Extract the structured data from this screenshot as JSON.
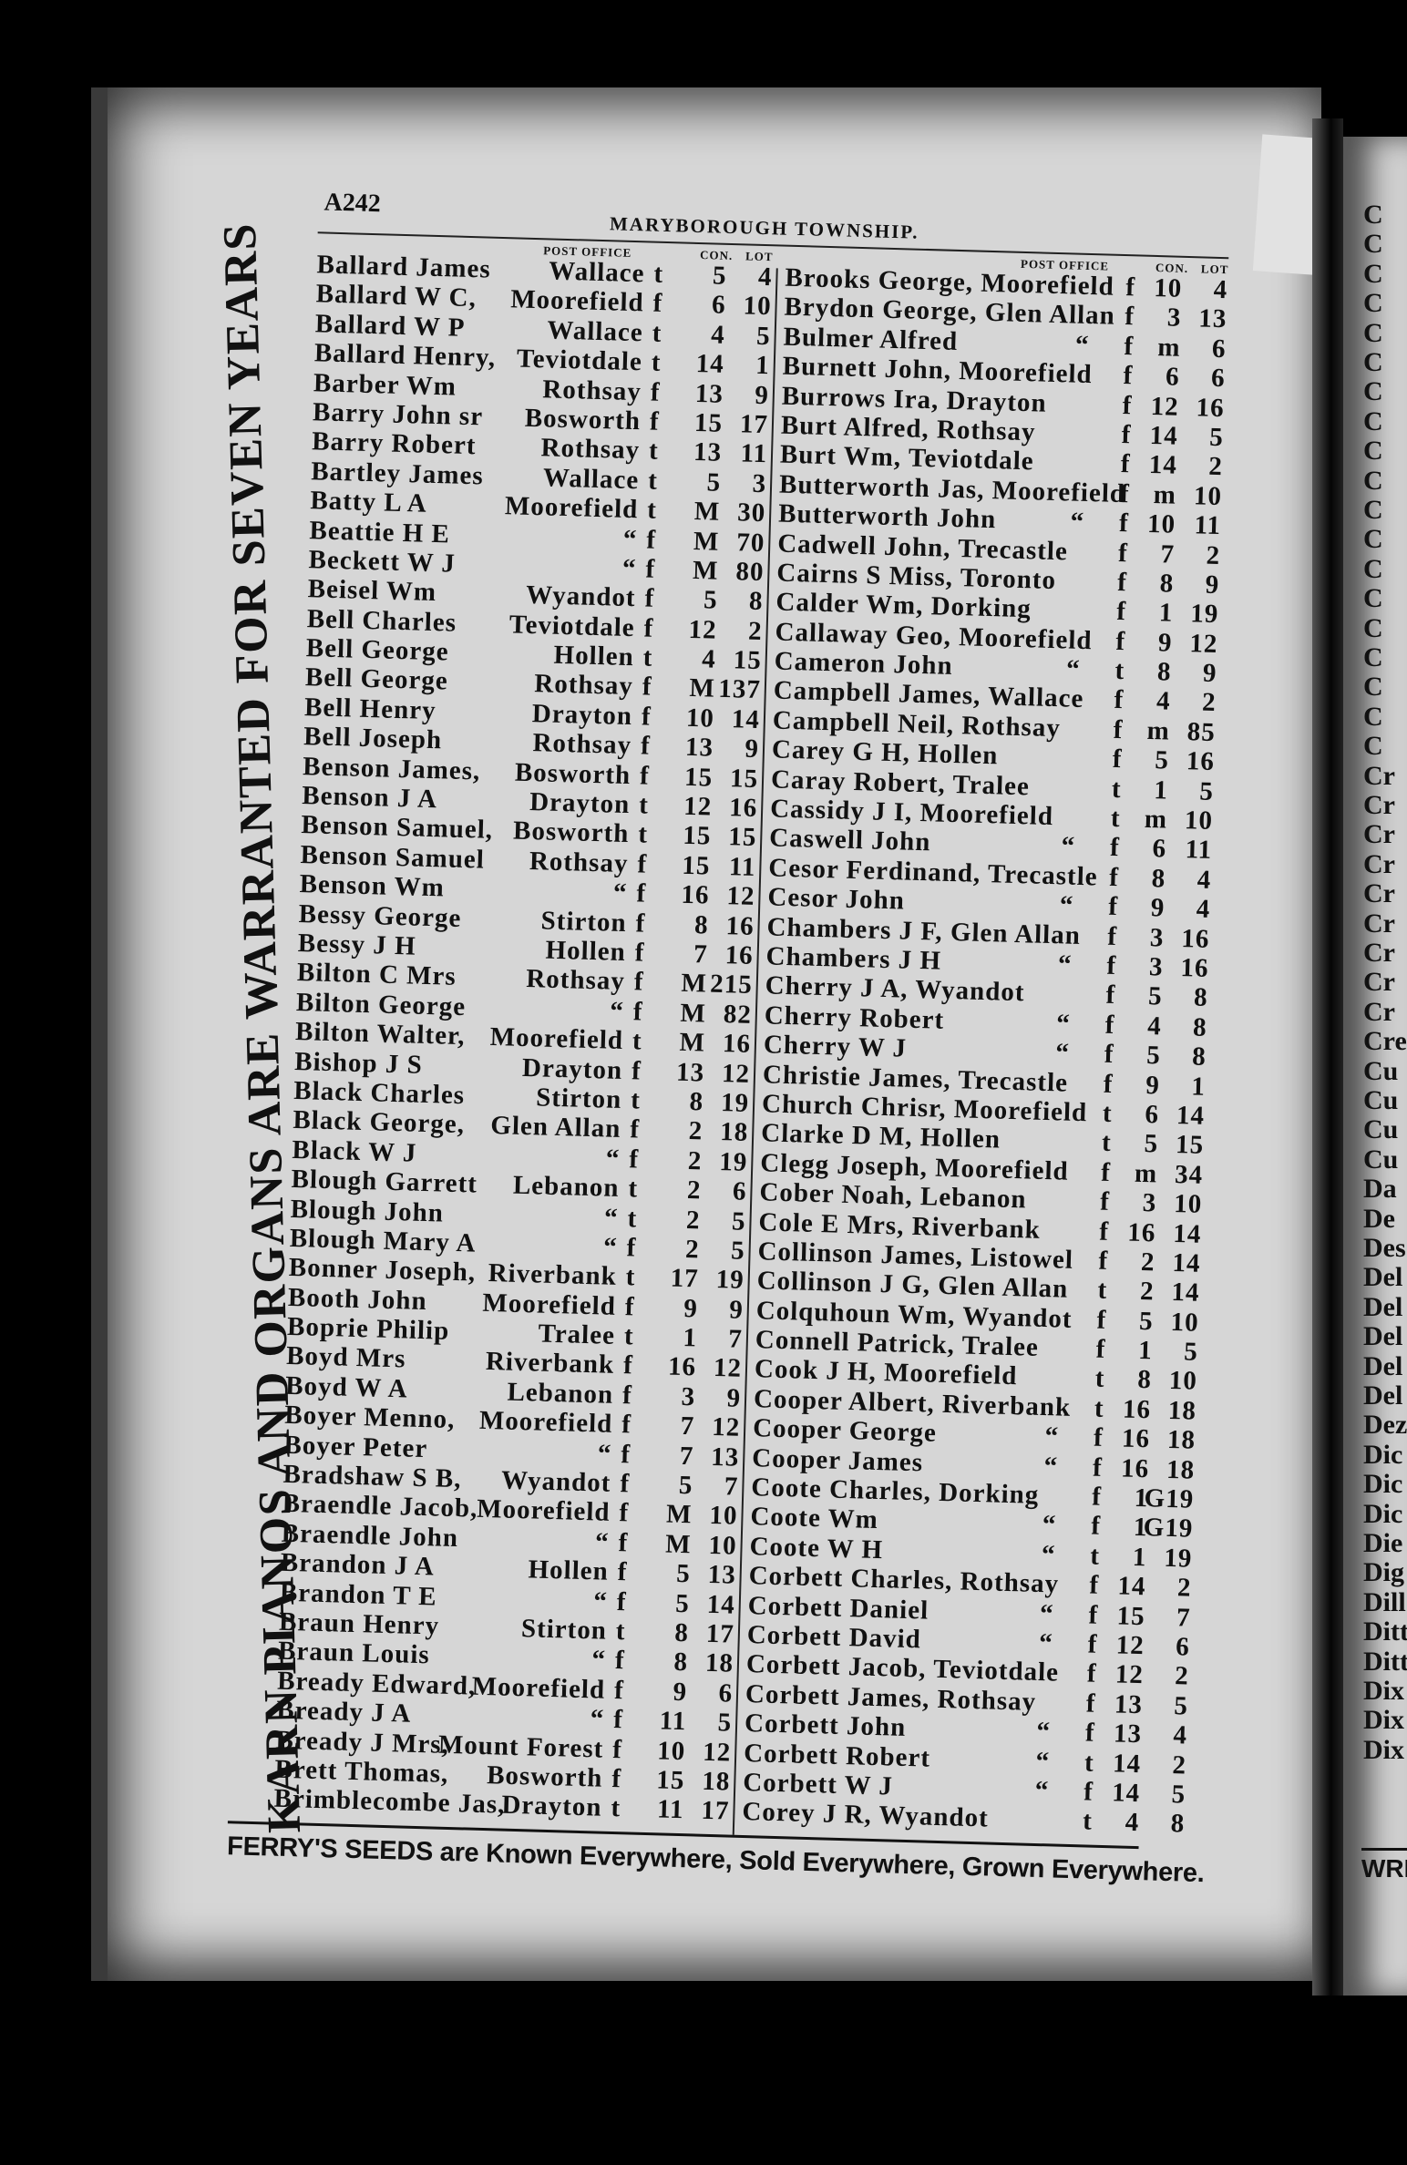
{
  "page_number": "A242",
  "running_title": "MARYBOROUGH TOWNSHIP.",
  "column_headers": {
    "post_office": "POST OFFICE",
    "con": "CON.",
    "lot": "LOT"
  },
  "side_advertisement": "KARN PIANOS AND ORGANS ARE WARRANTED FOR SEVEN YEARS",
  "footer_advertisement": "FERRY'S SEEDS are Known Everywhere, Sold Everywhere, Grown Everywhere.",
  "ditto_mark": "“",
  "left_column": [
    [
      "Ballard James",
      "Wallace",
      "t",
      "5",
      "4"
    ],
    [
      "Ballard W C,",
      "Moorefield",
      "f",
      "6",
      "10"
    ],
    [
      "Ballard W P",
      "Wallace",
      "t",
      "4",
      "5"
    ],
    [
      "Ballard Henry,",
      "Teviotdale",
      "t",
      "14",
      "1"
    ],
    [
      "Barber Wm",
      "Rothsay",
      "f",
      "13",
      "9"
    ],
    [
      "Barry John sr",
      "Bosworth",
      "f",
      "15",
      "17"
    ],
    [
      "Barry Robert",
      "Rothsay",
      "t",
      "13",
      "11"
    ],
    [
      "Bartley James",
      "Wallace",
      "t",
      "5",
      "3"
    ],
    [
      "Batty L A",
      "Moorefield",
      "t",
      "M",
      "30"
    ],
    [
      "Beattie H E",
      "“",
      "f",
      "M",
      "70"
    ],
    [
      "Beckett W J",
      "“",
      "f",
      "M",
      "80"
    ],
    [
      "Beisel Wm",
      "Wyandot",
      "f",
      "5",
      "8"
    ],
    [
      "Bell Charles",
      "Teviotdale",
      "f",
      "12",
      "2"
    ],
    [
      "Bell George",
      "Hollen",
      "t",
      "4",
      "15"
    ],
    [
      "Bell George",
      "Rothsay",
      "f",
      "M",
      "137"
    ],
    [
      "Bell Henry",
      "Drayton",
      "f",
      "10",
      "14"
    ],
    [
      "Bell Joseph",
      "Rothsay",
      "f",
      "13",
      "9"
    ],
    [
      "Benson James,",
      "Bosworth",
      "f",
      "15",
      "15"
    ],
    [
      "Benson J A",
      "Drayton",
      "t",
      "12",
      "16"
    ],
    [
      "Benson Samuel,",
      "Bosworth",
      "t",
      "15",
      "15"
    ],
    [
      "Benson Samuel",
      "Rothsay",
      "f",
      "15",
      "11"
    ],
    [
      "Benson Wm",
      "“",
      "f",
      "16",
      "12"
    ],
    [
      "Bessy George",
      "Stirton",
      "f",
      "8",
      "16"
    ],
    [
      "Bessy J H",
      "Hollen",
      "f",
      "7",
      "16"
    ],
    [
      "Bilton C Mrs",
      "Rothsay",
      "f",
      "M",
      "215"
    ],
    [
      "Bilton George",
      "“",
      "f",
      "M",
      "82"
    ],
    [
      "Bilton Walter,",
      "Moorefield",
      "t",
      "M",
      "16"
    ],
    [
      "Bishop J S",
      "Drayton",
      "f",
      "13",
      "12"
    ],
    [
      "Black Charles",
      "Stirton",
      "t",
      "8",
      "19"
    ],
    [
      "Black George,",
      "Glen Allan",
      "f",
      "2",
      "18"
    ],
    [
      "Black W J",
      "“",
      "f",
      "2",
      "19"
    ],
    [
      "Blough Garrett",
      "Lebanon",
      "t",
      "2",
      "6"
    ],
    [
      "Blough John",
      "“",
      "t",
      "2",
      "5"
    ],
    [
      "Blough Mary A",
      "“",
      "f",
      "2",
      "5"
    ],
    [
      "Bonner Joseph,",
      "Riverbank",
      "t",
      "17",
      "19"
    ],
    [
      "Booth John",
      "Moorefield",
      "f",
      "9",
      "9"
    ],
    [
      "Boprie Philip",
      "Tralee",
      "t",
      "1",
      "7"
    ],
    [
      "Boyd Mrs",
      "Riverbank",
      "f",
      "16",
      "12"
    ],
    [
      "Boyd W A",
      "Lebanon",
      "f",
      "3",
      "9"
    ],
    [
      "Boyer Menno,",
      "Moorefield",
      "f",
      "7",
      "12"
    ],
    [
      "Boyer Peter",
      "“",
      "f",
      "7",
      "13"
    ],
    [
      "Bradshaw S B,",
      "Wyandot",
      "f",
      "5",
      "7"
    ],
    [
      "Braendle Jacob,",
      "Moorefield",
      "f",
      "M",
      "10"
    ],
    [
      "Braendle John",
      "“",
      "f",
      "M",
      "10"
    ],
    [
      "Brandon J A",
      "Hollen",
      "f",
      "5",
      "13"
    ],
    [
      "Brandon T E",
      "“",
      "f",
      "5",
      "14"
    ],
    [
      "Braun Henry",
      "Stirton",
      "t",
      "8",
      "17"
    ],
    [
      "Braun Louis",
      "“",
      "f",
      "8",
      "18"
    ],
    [
      "Bready Edward,",
      "Moorefield",
      "f",
      "9",
      "6"
    ],
    [
      "Bready J A",
      "“",
      "f",
      "11",
      "5"
    ],
    [
      "Bready J Mrs,",
      "Mount Forest",
      "f",
      "10",
      "12"
    ],
    [
      "Brett Thomas,",
      "Bosworth",
      "f",
      "15",
      "18"
    ],
    [
      "Brimblecombe Jas,",
      "Drayton",
      "t",
      "11",
      "17"
    ]
  ],
  "right_column": [
    [
      "Brooks George,",
      "Moorefield",
      "f",
      "10",
      "4"
    ],
    [
      "Brydon George,",
      "Glen Allan",
      "f",
      "3",
      "13"
    ],
    [
      "Bulmer Alfred",
      "“",
      "f",
      "m",
      "6"
    ],
    [
      "Burnett John,",
      "Moorefield",
      "f",
      "6",
      "6"
    ],
    [
      "Burrows Ira,",
      "Drayton",
      "f",
      "12",
      "16"
    ],
    [
      "Burt Alfred,",
      "Rothsay",
      "f",
      "14",
      "5"
    ],
    [
      "Burt Wm,",
      "Teviotdale",
      "f",
      "14",
      "2"
    ],
    [
      "Butterworth Jas,",
      "Moorefield",
      "f",
      "m",
      "10"
    ],
    [
      "Butterworth John",
      "“",
      "f",
      "10",
      "11"
    ],
    [
      "Cadwell John,",
      "Trecastle",
      "f",
      "7",
      "2"
    ],
    [
      "Cairns S Miss,",
      "Toronto",
      "f",
      "8",
      "9"
    ],
    [
      "Calder Wm,",
      "Dorking",
      "f",
      "1",
      "19"
    ],
    [
      "Callaway Geo,",
      "Moorefield",
      "f",
      "9",
      "12"
    ],
    [
      "Cameron John",
      "“",
      "t",
      "8",
      "9"
    ],
    [
      "Campbell James,",
      "Wallace",
      "f",
      "4",
      "2"
    ],
    [
      "Campbell Neil,",
      "Rothsay",
      "f",
      "m",
      "85"
    ],
    [
      "Carey G H,",
      "Hollen",
      "f",
      "5",
      "16"
    ],
    [
      "Caray Robert,",
      "Tralee",
      "t",
      "1",
      "5"
    ],
    [
      "Cassidy J I,",
      "Moorefield",
      "t",
      "m",
      "10"
    ],
    [
      "Caswell John",
      "“",
      "f",
      "6",
      "11"
    ],
    [
      "Cesor Ferdinand,",
      "Trecastle",
      "f",
      "8",
      "4"
    ],
    [
      "Cesor John",
      "“",
      "f",
      "9",
      "4"
    ],
    [
      "Chambers J F,",
      "Glen Allan",
      "f",
      "3",
      "16"
    ],
    [
      "Chambers J H",
      "“",
      "f",
      "3",
      "16"
    ],
    [
      "Cherry J A,",
      "Wyandot",
      "f",
      "5",
      "8"
    ],
    [
      "Cherry Robert",
      "“",
      "f",
      "4",
      "8"
    ],
    [
      "Cherry W J",
      "“",
      "f",
      "5",
      "8"
    ],
    [
      "Christie James,",
      "Trecastle",
      "f",
      "9",
      "1"
    ],
    [
      "Church Chrisr,",
      "Moorefield",
      "t",
      "6",
      "14"
    ],
    [
      "Clarke D M,",
      "Hollen",
      "t",
      "5",
      "15"
    ],
    [
      "Clegg Joseph,",
      "Moorefield",
      "f",
      "m",
      "34"
    ],
    [
      "Cober Noah,",
      "Lebanon",
      "f",
      "3",
      "10"
    ],
    [
      "Cole E Mrs,",
      "Riverbank",
      "f",
      "16",
      "14"
    ],
    [
      "Collinson James,",
      "Listowel",
      "f",
      "2",
      "14"
    ],
    [
      "Collinson J G,",
      "Glen Allan",
      "t",
      "2",
      "14"
    ],
    [
      "Colquhoun Wm,",
      "Wyandot",
      "f",
      "5",
      "10"
    ],
    [
      "Connell Patrick,",
      "Tralee",
      "f",
      "1",
      "5"
    ],
    [
      "Cook J H,",
      "Moorefield",
      "t",
      "8",
      "10"
    ],
    [
      "Cooper Albert,",
      "Riverbank",
      "t",
      "16",
      "18"
    ],
    [
      "Cooper George",
      "“",
      "f",
      "16",
      "18"
    ],
    [
      "Cooper James",
      "“",
      "f",
      "16",
      "18"
    ],
    [
      "Coote Charles,",
      "Dorking",
      "f",
      "1",
      "G19"
    ],
    [
      "Coote Wm",
      "“",
      "f",
      "1",
      "G19"
    ],
    [
      "Coote W H",
      "“",
      "t",
      "1",
      "19"
    ],
    [
      "Corbett Charles,",
      "Rothsay",
      "f",
      "14",
      "2"
    ],
    [
      "Corbett Daniel",
      "“",
      "f",
      "15",
      "7"
    ],
    [
      "Corbett David",
      "“",
      "f",
      "12",
      "6"
    ],
    [
      "Corbett Jacob,",
      "Teviotdale",
      "f",
      "12",
      "2"
    ],
    [
      "Corbett James,",
      "Rothsay",
      "f",
      "13",
      "5"
    ],
    [
      "Corbett John",
      "“",
      "f",
      "13",
      "4"
    ],
    [
      "Corbett Robert",
      "“",
      "t",
      "14",
      "2"
    ],
    [
      "Corbett W J",
      "“",
      "f",
      "14",
      "5"
    ],
    [
      "Corey J R,",
      "Wyandot",
      "t",
      "4",
      "8"
    ]
  ],
  "next_page_fragments": [
    "C",
    "C",
    "C",
    "C",
    "C",
    "C",
    "C",
    "C",
    "C",
    "C",
    "C",
    "C",
    "C",
    "C",
    "C",
    "C",
    "C",
    "C",
    "C",
    "Cr",
    "Cr",
    "Cr",
    "Cr",
    "Cr",
    "Cr",
    "Cr",
    "Cr",
    "Cr",
    "Cre",
    "Cu",
    "Cu",
    "Cu",
    "Cu",
    "Da",
    "De",
    "Des",
    "Del",
    "Del",
    "Del",
    "Del",
    "Del",
    "Dez",
    "Dic",
    "Dic",
    "Dic",
    "Die",
    "Dig",
    "Dill",
    "Ditt",
    "Ditt",
    "Dix",
    "Dix",
    "Dix"
  ],
  "next_page_footer_fragment": "WRI"
}
